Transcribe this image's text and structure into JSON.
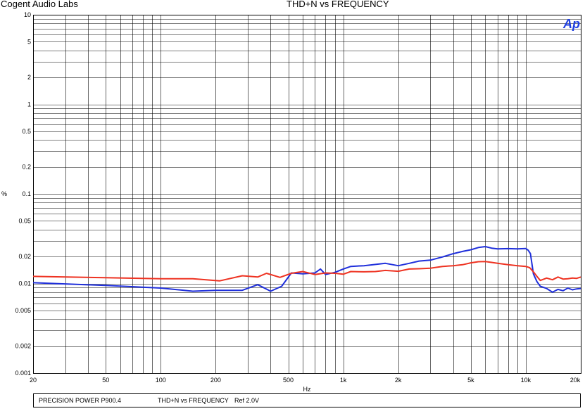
{
  "header": {
    "company": "Cogent Audio Labs",
    "title": "THD+N vs FREQUENCY",
    "logo_text": "Ap"
  },
  "footer": {
    "device": "PRECISION POWER P900.4",
    "measurement": "THD+N vs FREQUENCY",
    "reference": "Ref 2.0V"
  },
  "colors": {
    "series_blue": "#1f2fdb",
    "series_red": "#ee3322",
    "grid": "#000000",
    "logo": "#1f3fe0"
  },
  "chart_data": {
    "type": "line",
    "title": "THD+N vs FREQUENCY",
    "xlabel": "Hz",
    "ylabel": "%",
    "xscale": "log",
    "yscale": "log",
    "xlim": [
      20,
      20000
    ],
    "ylim": [
      0.001,
      10
    ],
    "grid": true,
    "xticks": [
      {
        "value": 20,
        "label": "20"
      },
      {
        "value": 50,
        "label": "50"
      },
      {
        "value": 100,
        "label": "100"
      },
      {
        "value": 200,
        "label": "200"
      },
      {
        "value": 500,
        "label": "500"
      },
      {
        "value": 1000,
        "label": "1k"
      },
      {
        "value": 2000,
        "label": "2k"
      },
      {
        "value": 5000,
        "label": "5k"
      },
      {
        "value": 10000,
        "label": "10k"
      },
      {
        "value": 20000,
        "label": "20k"
      }
    ],
    "yticks": [
      {
        "value": 0.001,
        "label": "0.001"
      },
      {
        "value": 0.002,
        "label": "0.002"
      },
      {
        "value": 0.005,
        "label": "0.005"
      },
      {
        "value": 0.01,
        "label": "0.01"
      },
      {
        "value": 0.02,
        "label": "0.02"
      },
      {
        "value": 0.05,
        "label": "0.05"
      },
      {
        "value": 0.1,
        "label": "0.1"
      },
      {
        "value": 0.2,
        "label": "0.2"
      },
      {
        "value": 0.5,
        "label": "0.5"
      },
      {
        "value": 1,
        "label": "1"
      },
      {
        "value": 2,
        "label": "2"
      },
      {
        "value": 5,
        "label": "5"
      },
      {
        "value": 10,
        "label": "10"
      }
    ],
    "series": [
      {
        "color": "#1f2fdb",
        "x": [
          20,
          50,
          100,
          150,
          200,
          280,
          340,
          400,
          460,
          520,
          600,
          700,
          750,
          800,
          900,
          1000,
          1100,
          1300,
          1500,
          1700,
          2000,
          2300,
          2600,
          3000,
          3500,
          4000,
          4500,
          5000,
          5500,
          6000,
          6500,
          7000,
          8000,
          9000,
          10000,
          10300,
          10600,
          11000,
          11500,
          12000,
          13000,
          14000,
          15000,
          16000,
          17000,
          18000,
          19000,
          20000
        ],
        "y": [
          0.0102,
          0.0095,
          0.0089,
          0.0082,
          0.0084,
          0.0084,
          0.0097,
          0.0082,
          0.0093,
          0.0131,
          0.0128,
          0.0131,
          0.0145,
          0.0126,
          0.0133,
          0.0145,
          0.0155,
          0.0158,
          0.0163,
          0.0168,
          0.0158,
          0.0168,
          0.0178,
          0.0182,
          0.0198,
          0.0215,
          0.0228,
          0.0238,
          0.0252,
          0.0258,
          0.0248,
          0.0243,
          0.0245,
          0.0243,
          0.0246,
          0.0235,
          0.0215,
          0.0128,
          0.0105,
          0.0093,
          0.0088,
          0.008,
          0.0086,
          0.0083,
          0.0089,
          0.0085,
          0.0087,
          0.0088
        ]
      },
      {
        "color": "#ee3322",
        "x": [
          20,
          50,
          100,
          150,
          210,
          280,
          340,
          380,
          450,
          520,
          600,
          700,
          800,
          900,
          1000,
          1100,
          1300,
          1500,
          1700,
          2000,
          2300,
          2600,
          3000,
          3500,
          4000,
          4500,
          5000,
          5500,
          6000,
          6500,
          7000,
          8000,
          9000,
          10000,
          10500,
          11000,
          11500,
          12000,
          13000,
          14000,
          15000,
          16000,
          17000,
          18000,
          19000,
          20000
        ],
        "y": [
          0.012,
          0.0116,
          0.0113,
          0.0113,
          0.0107,
          0.0122,
          0.0118,
          0.013,
          0.0117,
          0.013,
          0.0136,
          0.0126,
          0.0131,
          0.013,
          0.0127,
          0.0136,
          0.0135,
          0.0136,
          0.014,
          0.0137,
          0.0145,
          0.0146,
          0.0148,
          0.0155,
          0.0158,
          0.0162,
          0.017,
          0.0175,
          0.0176,
          0.0172,
          0.0168,
          0.0162,
          0.0158,
          0.0155,
          0.015,
          0.0135,
          0.012,
          0.0108,
          0.0115,
          0.011,
          0.0118,
          0.0112,
          0.0113,
          0.0115,
          0.0114,
          0.0118
        ]
      }
    ]
  }
}
